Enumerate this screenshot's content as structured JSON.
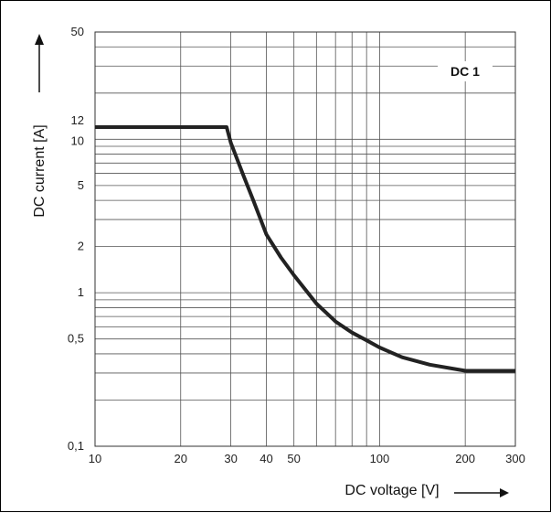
{
  "chart_data": {
    "type": "line",
    "title": "",
    "xlabel": "DC voltage [V]",
    "ylabel": "DC current [A]",
    "x_scale": "log",
    "y_scale": "log",
    "xlim": [
      10,
      300
    ],
    "ylim": [
      0.1,
      50
    ],
    "grid": true,
    "x_ticks": [
      {
        "value": 10,
        "label": "10"
      },
      {
        "value": 20,
        "label": "20"
      },
      {
        "value": 30,
        "label": "30"
      },
      {
        "value": 40,
        "label": "40"
      },
      {
        "value": 50,
        "label": "50"
      },
      {
        "value": 100,
        "label": "100"
      },
      {
        "value": 200,
        "label": "200"
      },
      {
        "value": 300,
        "label": "300"
      }
    ],
    "y_ticks": [
      {
        "value": 0.1,
        "label": "0,1"
      },
      {
        "value": 0.5,
        "label": "0,5"
      },
      {
        "value": 1,
        "label": "1"
      },
      {
        "value": 2,
        "label": "2"
      },
      {
        "value": 5,
        "label": "5"
      },
      {
        "value": 10,
        "label": "10"
      },
      {
        "value": 12,
        "label": "12"
      },
      {
        "value": 50,
        "label": "50"
      }
    ],
    "x_gridlines": [
      10,
      20,
      30,
      40,
      50,
      60,
      70,
      80,
      90,
      100,
      200,
      300
    ],
    "y_gridlines": [
      0.1,
      0.2,
      0.3,
      0.4,
      0.5,
      0.6,
      0.7,
      0.8,
      0.9,
      1,
      2,
      3,
      4,
      5,
      6,
      7,
      8,
      9,
      10,
      20,
      30,
      40,
      50
    ],
    "series_label": "DC 1",
    "series": [
      {
        "color": "#222222",
        "points": [
          {
            "x": 10,
            "y": 12
          },
          {
            "x": 29,
            "y": 12
          },
          {
            "x": 30,
            "y": 9.5
          },
          {
            "x": 33,
            "y": 6.0
          },
          {
            "x": 36,
            "y": 4.0
          },
          {
            "x": 40,
            "y": 2.4
          },
          {
            "x": 45,
            "y": 1.7
          },
          {
            "x": 50,
            "y": 1.3
          },
          {
            "x": 60,
            "y": 0.85
          },
          {
            "x": 70,
            "y": 0.65
          },
          {
            "x": 80,
            "y": 0.55
          },
          {
            "x": 90,
            "y": 0.49
          },
          {
            "x": 100,
            "y": 0.44
          },
          {
            "x": 120,
            "y": 0.38
          },
          {
            "x": 150,
            "y": 0.34
          },
          {
            "x": 200,
            "y": 0.31
          },
          {
            "x": 300,
            "y": 0.31
          }
        ]
      }
    ]
  }
}
